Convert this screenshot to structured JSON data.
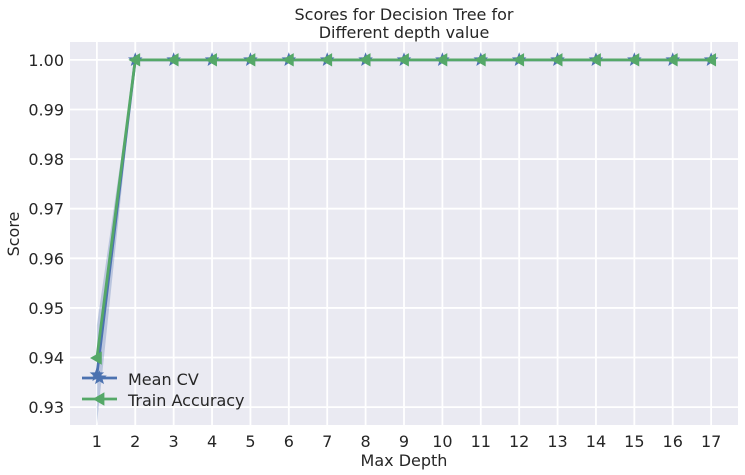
{
  "chart_data": {
    "type": "line",
    "title": [
      "Scores for Decision Tree for",
      "Different depth value"
    ],
    "xlabel": "Max Depth",
    "ylabel": "Score",
    "x": [
      1,
      2,
      3,
      4,
      5,
      6,
      7,
      8,
      9,
      10,
      11,
      12,
      13,
      14,
      15,
      16,
      17
    ],
    "xticks": [
      "1",
      "2",
      "3",
      "4",
      "5",
      "6",
      "7",
      "8",
      "9",
      "10",
      "11",
      "12",
      "13",
      "14",
      "15",
      "16",
      "17"
    ],
    "yticks": [
      "0.93",
      "0.94",
      "0.95",
      "0.96",
      "0.97",
      "0.98",
      "0.99",
      "1.00"
    ],
    "ytick_values": [
      0.93,
      0.94,
      0.95,
      0.96,
      0.97,
      0.98,
      0.99,
      1.0
    ],
    "xlim": [
      0.3,
      17.7
    ],
    "ylim": [
      0.9264,
      1.0036
    ],
    "grid": true,
    "legend_position": "lower-left",
    "series": [
      {
        "name": "Mean CV",
        "color": "#4c72b0",
        "marker": "star",
        "values": [
          0.9365,
          1.0,
          1.0,
          1.0,
          1.0,
          1.0,
          1.0,
          1.0,
          1.0,
          1.0,
          1.0,
          1.0,
          1.0,
          1.0,
          1.0,
          1.0,
          1.0
        ],
        "band_lower": [
          0.9265,
          1.0,
          1.0,
          1.0,
          1.0,
          1.0,
          1.0,
          1.0,
          1.0,
          1.0,
          1.0,
          1.0,
          1.0,
          1.0,
          1.0,
          1.0,
          1.0
        ],
        "band_upper": [
          0.9465,
          1.0,
          1.0,
          1.0,
          1.0,
          1.0,
          1.0,
          1.0,
          1.0,
          1.0,
          1.0,
          1.0,
          1.0,
          1.0,
          1.0,
          1.0,
          1.0
        ]
      },
      {
        "name": "Train Accuracy",
        "color": "#55a868",
        "marker": "triangle-left",
        "values": [
          0.9399,
          1.0,
          1.0,
          1.0,
          1.0,
          1.0,
          1.0,
          1.0,
          1.0,
          1.0,
          1.0,
          1.0,
          1.0,
          1.0,
          1.0,
          1.0,
          1.0
        ]
      }
    ]
  }
}
